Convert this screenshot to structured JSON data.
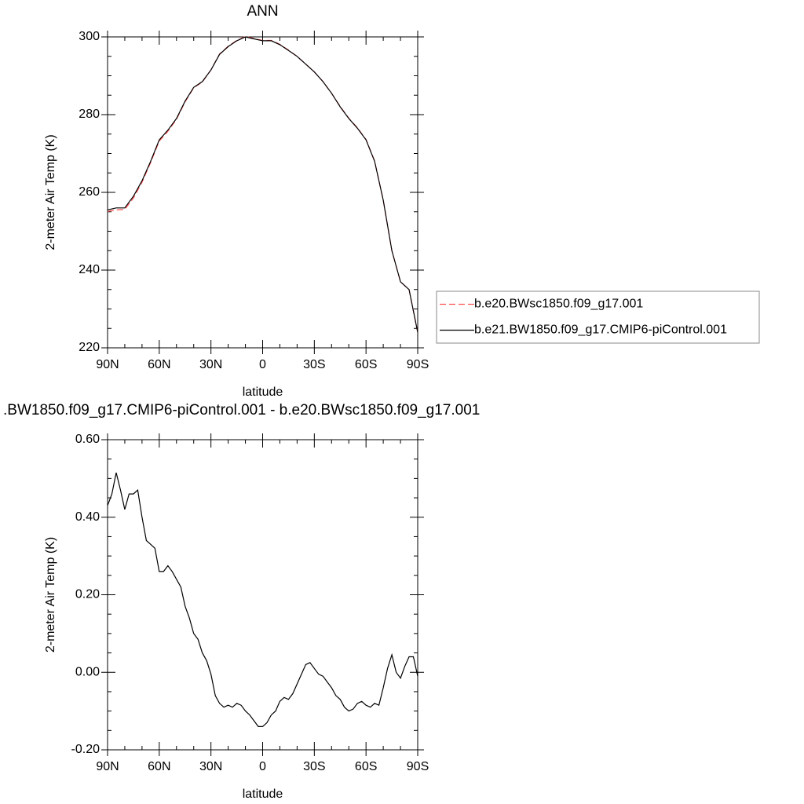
{
  "chart_data": [
    {
      "type": "line",
      "title": "ANN",
      "xlabel": "latitude",
      "ylabel": "2-meter Air Temp (K)",
      "x": [
        90,
        85,
        80,
        75,
        70,
        65,
        60,
        55,
        50,
        45,
        40,
        35,
        30,
        25,
        20,
        15,
        10,
        5,
        0,
        -5,
        -10,
        -15,
        -20,
        -25,
        -30,
        -35,
        -40,
        -45,
        -50,
        -55,
        -60,
        -65,
        -70,
        -75,
        -80,
        -85,
        -90
      ],
      "series": [
        {
          "name": "b.e20.BWsc1850.f09_g17.001",
          "color": "#ff5050",
          "linestyle": "dashed",
          "values": [
            255.1,
            255.5,
            255.6,
            258.5,
            262.6,
            267.7,
            273.2,
            275.7,
            278.8,
            283.3,
            286.9,
            288.4,
            291.5,
            295.6,
            297.6,
            299.1,
            300.1,
            299.6,
            299.1,
            299.1,
            298.1,
            296.6,
            295.0,
            293.0,
            291.0,
            288.5,
            285.5,
            282.1,
            279.1,
            276.6,
            273.6,
            268.1,
            258.0,
            245.0,
            237.0,
            235.0,
            224.0
          ]
        },
        {
          "name": "b.e21.BW1850.f09_g17.CMIP6-piControl.001",
          "color": "#000000",
          "linestyle": "solid",
          "values": [
            255.5,
            256,
            256,
            259,
            263,
            268,
            273.5,
            276,
            279,
            283.5,
            287,
            288.5,
            291.5,
            295.5,
            297.5,
            299,
            300,
            299.5,
            299,
            299,
            298,
            296.5,
            295,
            293,
            291,
            288.5,
            285.5,
            282,
            279,
            276.5,
            273.5,
            268,
            258,
            245,
            237,
            235,
            224
          ]
        }
      ],
      "xlim": [
        90,
        -90
      ],
      "xticks": [
        {
          "value": 90,
          "label": "90N"
        },
        {
          "value": 60,
          "label": "60N"
        },
        {
          "value": 30,
          "label": "30N"
        },
        0,
        {
          "value": -30,
          "label": "30S"
        },
        {
          "value": -60,
          "label": "60S"
        },
        {
          "value": -90,
          "label": "90S"
        }
      ],
      "ylim": [
        220,
        300
      ],
      "yticks": [
        220,
        240,
        260,
        280,
        300
      ],
      "legend": "right"
    },
    {
      "type": "line",
      "title": ".BW1850.f09_g17.CMIP6-piControl.001 - b.e20.BWsc1850.f09_g17.001",
      "xlabel": "latitude",
      "ylabel": "2-meter Air Temp (K)",
      "x": [
        90,
        87.5,
        85,
        82.5,
        80,
        77.5,
        75,
        72.5,
        70,
        67.5,
        65,
        62.5,
        60,
        57.5,
        55,
        52.5,
        50,
        47.5,
        45,
        42.5,
        40,
        37.5,
        35,
        32.5,
        30,
        27.5,
        25,
        22.5,
        20,
        17.5,
        15,
        12.5,
        10,
        7.5,
        5,
        2.5,
        0,
        -2.5,
        -5,
        -7.5,
        -10,
        -12.5,
        -15,
        -17.5,
        -20,
        -22.5,
        -25,
        -27.5,
        -30,
        -32.5,
        -35,
        -37.5,
        -40,
        -42.5,
        -45,
        -47.5,
        -50,
        -52.5,
        -55,
        -57.5,
        -60,
        -62.5,
        -65,
        -67.5,
        -70,
        -72.5,
        -75,
        -77.5,
        -80,
        -82.5,
        -85,
        -87.5,
        -90
      ],
      "values": [
        0.43,
        0.46,
        0.515,
        0.47,
        0.42,
        0.46,
        0.46,
        0.47,
        0.4,
        0.34,
        0.33,
        0.32,
        0.26,
        0.26,
        0.275,
        0.26,
        0.24,
        0.22,
        0.17,
        0.14,
        0.1,
        0.085,
        0.05,
        0.03,
        -0.005,
        -0.06,
        -0.08,
        -0.09,
        -0.085,
        -0.09,
        -0.08,
        -0.085,
        -0.1,
        -0.11,
        -0.125,
        -0.14,
        -0.14,
        -0.13,
        -0.11,
        -0.1,
        -0.075,
        -0.065,
        -0.07,
        -0.055,
        -0.03,
        -0.005,
        0.02,
        0.025,
        0.01,
        -0.005,
        -0.01,
        -0.025,
        -0.04,
        -0.06,
        -0.07,
        -0.09,
        -0.1,
        -0.095,
        -0.08,
        -0.075,
        -0.085,
        -0.09,
        -0.08,
        -0.085,
        -0.04,
        0.01,
        0.045,
        0.0,
        -0.015,
        0.015,
        0.04,
        0.04,
        -0.01
      ],
      "color": "#000000",
      "xlim": [
        90,
        -90
      ],
      "xticks": [
        {
          "value": 90,
          "label": "90N"
        },
        {
          "value": 60,
          "label": "60N"
        },
        {
          "value": 30,
          "label": "30N"
        },
        0,
        {
          "value": -30,
          "label": "30S"
        },
        {
          "value": -60,
          "label": "60S"
        },
        {
          "value": -90,
          "label": "90S"
        }
      ],
      "ylim": [
        -0.2,
        0.6
      ],
      "yticks": [
        {
          "value": -0.2,
          "label": "-0.20"
        },
        {
          "value": 0,
          "label": "0.00"
        },
        {
          "value": 0.2,
          "label": "0.20"
        },
        {
          "value": 0.4,
          "label": "0.40"
        },
        {
          "value": 0.6,
          "label": "0.60"
        }
      ]
    }
  ]
}
